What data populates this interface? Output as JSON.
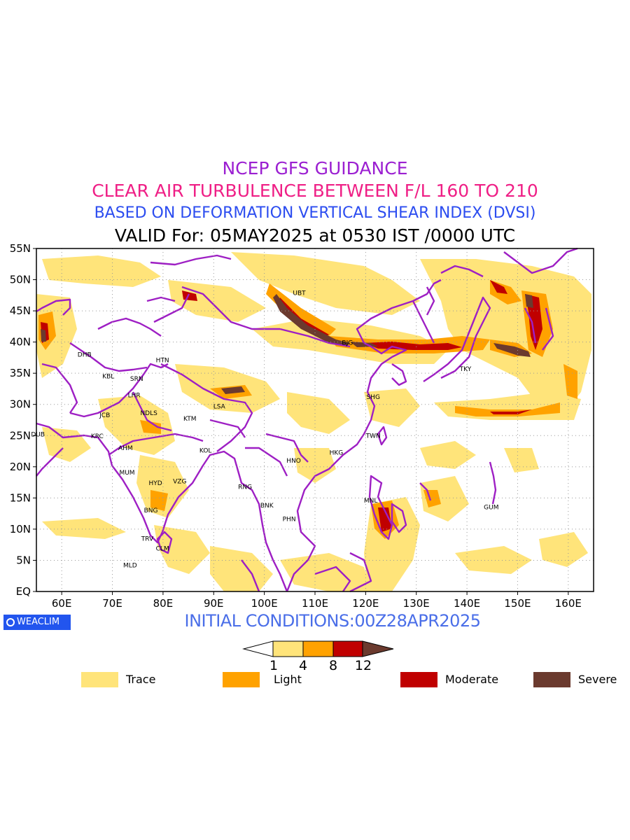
{
  "titles": {
    "line1": "NCEP GFS GUIDANCE",
    "line2": "CLEAR AIR TURBULENCE BETWEEN F/L 160 TO 210",
    "line3": "BASED ON DEFORMATION VERTICAL SHEAR INDEX (DVSI)",
    "line4": "VALID For: 05MAY2025 at 0530 IST /0000 UTC"
  },
  "initial_conditions": "INITIAL CONDITIONS:00Z28APR2025",
  "logo_text": "WEACLIM",
  "map": {
    "projection": "equirectangular",
    "lon_range": [
      55,
      165
    ],
    "lat_range": [
      0,
      55
    ],
    "grid": "dotted",
    "lon_ticks": [
      {
        "value": 60,
        "label": "60E"
      },
      {
        "value": 70,
        "label": "70E"
      },
      {
        "value": 80,
        "label": "80E"
      },
      {
        "value": 90,
        "label": "90E"
      },
      {
        "value": 100,
        "label": "100E"
      },
      {
        "value": 110,
        "label": "110E"
      },
      {
        "value": 120,
        "label": "120E"
      },
      {
        "value": 130,
        "label": "130E"
      },
      {
        "value": 140,
        "label": "140E"
      },
      {
        "value": 150,
        "label": "150E"
      },
      {
        "value": 160,
        "label": "160E"
      }
    ],
    "lat_ticks": [
      {
        "value": 55,
        "label": "55N"
      },
      {
        "value": 50,
        "label": "50N"
      },
      {
        "value": 45,
        "label": "45N"
      },
      {
        "value": 40,
        "label": "40N"
      },
      {
        "value": 35,
        "label": "35N"
      },
      {
        "value": 30,
        "label": "30N"
      },
      {
        "value": 25,
        "label": "25N"
      },
      {
        "value": 20,
        "label": "20N"
      },
      {
        "value": 15,
        "label": "15N"
      },
      {
        "value": 10,
        "label": "10N"
      },
      {
        "value": 5,
        "label": "5N"
      },
      {
        "value": 0,
        "label": "EQ"
      }
    ],
    "stations": [
      {
        "code": "UBT",
        "lon": 106.9,
        "lat": 47.9
      },
      {
        "code": "BJG",
        "lon": 116.4,
        "lat": 39.9
      },
      {
        "code": "TKY",
        "lon": 139.7,
        "lat": 35.7
      },
      {
        "code": "SHG",
        "lon": 121.5,
        "lat": 31.2
      },
      {
        "code": "TWN",
        "lon": 121.5,
        "lat": 25.0
      },
      {
        "code": "HKG",
        "lon": 114.2,
        "lat": 22.3
      },
      {
        "code": "HNO",
        "lon": 105.8,
        "lat": 21.0
      },
      {
        "code": "LSA",
        "lon": 91.1,
        "lat": 29.7
      },
      {
        "code": "KTM",
        "lon": 85.3,
        "lat": 27.7
      },
      {
        "code": "KOL",
        "lon": 88.4,
        "lat": 22.6
      },
      {
        "code": "DHB",
        "lon": 64.5,
        "lat": 38.0
      },
      {
        "code": "KBL",
        "lon": 69.2,
        "lat": 34.5
      },
      {
        "code": "SRN",
        "lon": 74.8,
        "lat": 34.1
      },
      {
        "code": "LHR",
        "lon": 74.3,
        "lat": 31.5
      },
      {
        "code": "NDLS",
        "lon": 77.2,
        "lat": 28.6
      },
      {
        "code": "JCB",
        "lon": 68.5,
        "lat": 28.3
      },
      {
        "code": "KRC",
        "lon": 67.0,
        "lat": 24.9
      },
      {
        "code": "DUB",
        "lon": 55.3,
        "lat": 25.2
      },
      {
        "code": "AHM",
        "lon": 72.6,
        "lat": 23.0
      },
      {
        "code": "MUM",
        "lon": 72.9,
        "lat": 19.1
      },
      {
        "code": "HYD",
        "lon": 78.5,
        "lat": 17.4
      },
      {
        "code": "VZG",
        "lon": 83.3,
        "lat": 17.7
      },
      {
        "code": "BNG",
        "lon": 77.6,
        "lat": 13.0
      },
      {
        "code": "TRV",
        "lon": 76.9,
        "lat": 8.5
      },
      {
        "code": "CLM",
        "lon": 79.9,
        "lat": 6.9
      },
      {
        "code": "MLD",
        "lon": 73.5,
        "lat": 4.2
      },
      {
        "code": "RNG",
        "lon": 96.2,
        "lat": 16.8
      },
      {
        "code": "BNK",
        "lon": 100.5,
        "lat": 13.8
      },
      {
        "code": "PHN",
        "lon": 104.9,
        "lat": 11.6
      },
      {
        "code": "MNL",
        "lon": 121.0,
        "lat": 14.6
      },
      {
        "code": "GUM",
        "lon": 144.8,
        "lat": 13.5
      },
      {
        "code": "HTN",
        "lon": 79.9,
        "lat": 37.1
      }
    ]
  },
  "colorbar": {
    "levels": [
      "1",
      "4",
      "8",
      "12"
    ],
    "colors": {
      "below": "#ffffff",
      "trace": "#ffe47a",
      "light": "#ffa200",
      "moderate": "#c00000",
      "severe": "#6b3a2e"
    }
  },
  "legend": [
    {
      "label": "Trace",
      "color": "#ffe47a"
    },
    {
      "label": "Light",
      "color": "#ffa200"
    },
    {
      "label": "Moderate",
      "color": "#c00000"
    },
    {
      "label": "Severe",
      "color": "#6b3a2e"
    }
  ],
  "colors": {
    "trace": "#ffe47a",
    "light": "#ffa200",
    "moderate": "#c00000",
    "severe": "#6b3a2e",
    "coast": "#9e1fc4",
    "title1": "#9b1fd1",
    "title2": "#ef1f86",
    "title3": "#2c4df0",
    "init": "#4a6ee8"
  }
}
